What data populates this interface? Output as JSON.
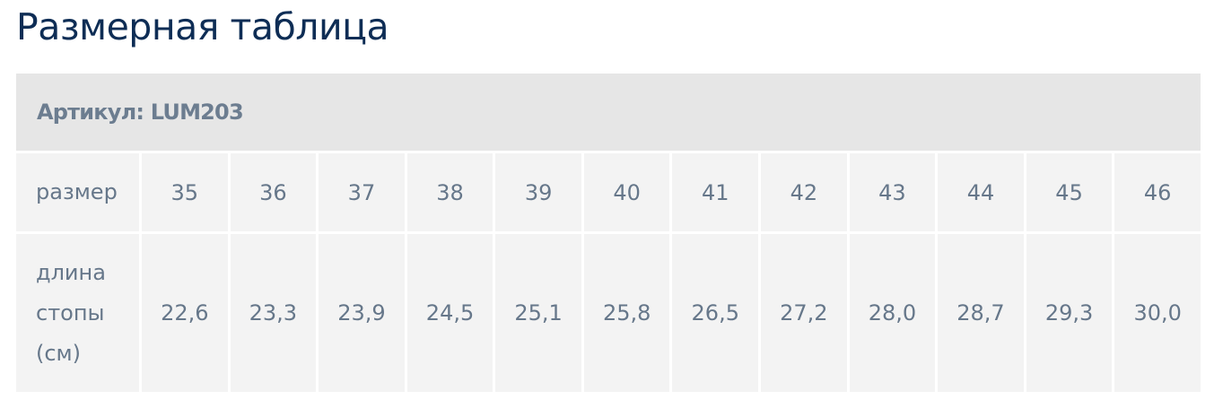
{
  "title": "Размерная таблица",
  "article": "Артикул: LUM203",
  "rows": {
    "size_label": "размер",
    "length_label_lines": [
      "длина",
      "стопы",
      "(см)"
    ],
    "sizes": [
      "35",
      "36",
      "37",
      "38",
      "39",
      "40",
      "41",
      "42",
      "43",
      "44",
      "45",
      "46"
    ],
    "lengths": [
      "22,6",
      "23,3",
      "23,9",
      "24,5",
      "25,1",
      "25,8",
      "26,5",
      "27,2",
      "28,0",
      "28,7",
      "29,3",
      "30,0"
    ]
  }
}
